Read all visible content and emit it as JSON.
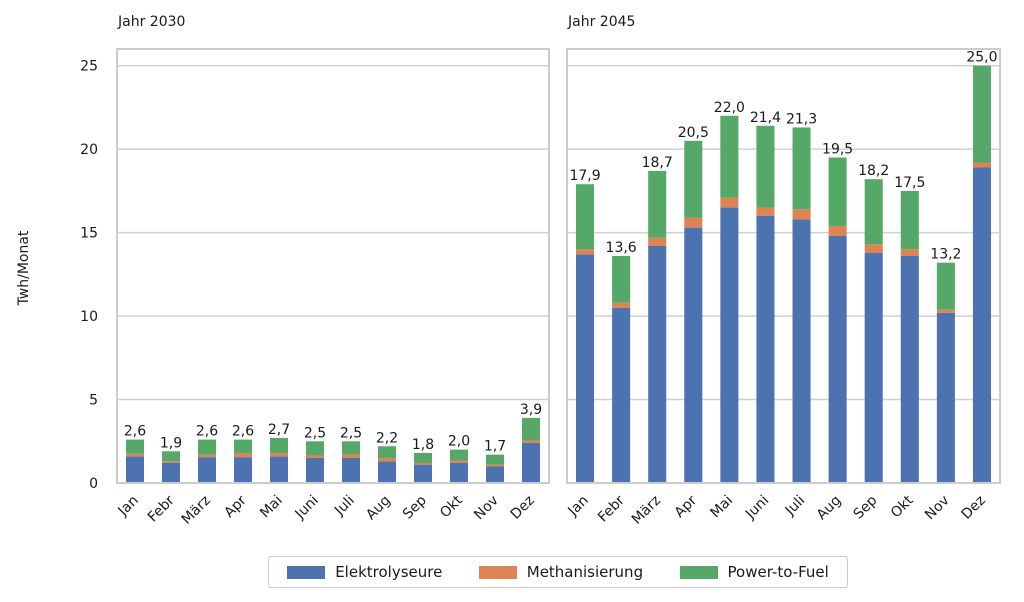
{
  "chart_data": {
    "type": "bar",
    "stacked": true,
    "ylabel": "Twh/Monat",
    "ylim": [
      0,
      26
    ],
    "yticks": [
      0,
      5,
      10,
      15,
      20,
      25
    ],
    "grid": true,
    "legend_position": "bottom",
    "categories": [
      "Jan",
      "Febr",
      "März",
      "Apr",
      "Mai",
      "Juni",
      "Juli",
      "Aug",
      "Sep",
      "Okt",
      "Nov",
      "Dez"
    ],
    "series_info": [
      {
        "name": "Elektrolyseure",
        "color": "#4c72b0"
      },
      {
        "name": "Methanisierung",
        "color": "#dd8452"
      },
      {
        "name": "Power-to-Fuel",
        "color": "#55a868"
      }
    ],
    "panels": [
      {
        "title": "Jahr 2030",
        "series": [
          {
            "name": "Elektrolyseure",
            "values": [
              1.6,
              1.2,
              1.55,
              1.55,
              1.6,
              1.5,
              1.5,
              1.3,
              1.1,
              1.2,
              1.0,
              2.4
            ]
          },
          {
            "name": "Methanisierung",
            "values": [
              0.15,
              0.1,
              0.15,
              0.25,
              0.2,
              0.15,
              0.2,
              0.2,
              0.1,
              0.15,
              0.1,
              0.15
            ]
          },
          {
            "name": "Power-to-Fuel",
            "values": [
              0.85,
              0.6,
              0.9,
              0.8,
              0.9,
              0.85,
              0.8,
              0.7,
              0.6,
              0.65,
              0.6,
              1.35
            ]
          }
        ],
        "totals": [
          "2,6",
          "1,9",
          "2,6",
          "2,6",
          "2,7",
          "2,5",
          "2,5",
          "2,2",
          "1,8",
          "2,0",
          "1,7",
          "3,9"
        ]
      },
      {
        "title": "Jahr 2045",
        "series": [
          {
            "name": "Elektrolyseure",
            "values": [
              13.7,
              10.5,
              14.2,
              15.3,
              16.5,
              16.0,
              15.8,
              14.8,
              13.8,
              13.6,
              10.2,
              18.9
            ]
          },
          {
            "name": "Methanisierung",
            "values": [
              0.3,
              0.3,
              0.5,
              0.6,
              0.6,
              0.5,
              0.6,
              0.6,
              0.5,
              0.4,
              0.2,
              0.3
            ]
          },
          {
            "name": "Power-to-Fuel",
            "values": [
              3.9,
              2.8,
              4.0,
              4.6,
              4.9,
              4.9,
              4.9,
              4.1,
              3.9,
              3.5,
              2.8,
              5.8
            ]
          }
        ],
        "totals": [
          "17,9",
          "13,6",
          "18,7",
          "20,5",
          "22,0",
          "21,4",
          "21,3",
          "19,5",
          "18,2",
          "17,5",
          "13,2",
          "25,0"
        ]
      }
    ]
  }
}
